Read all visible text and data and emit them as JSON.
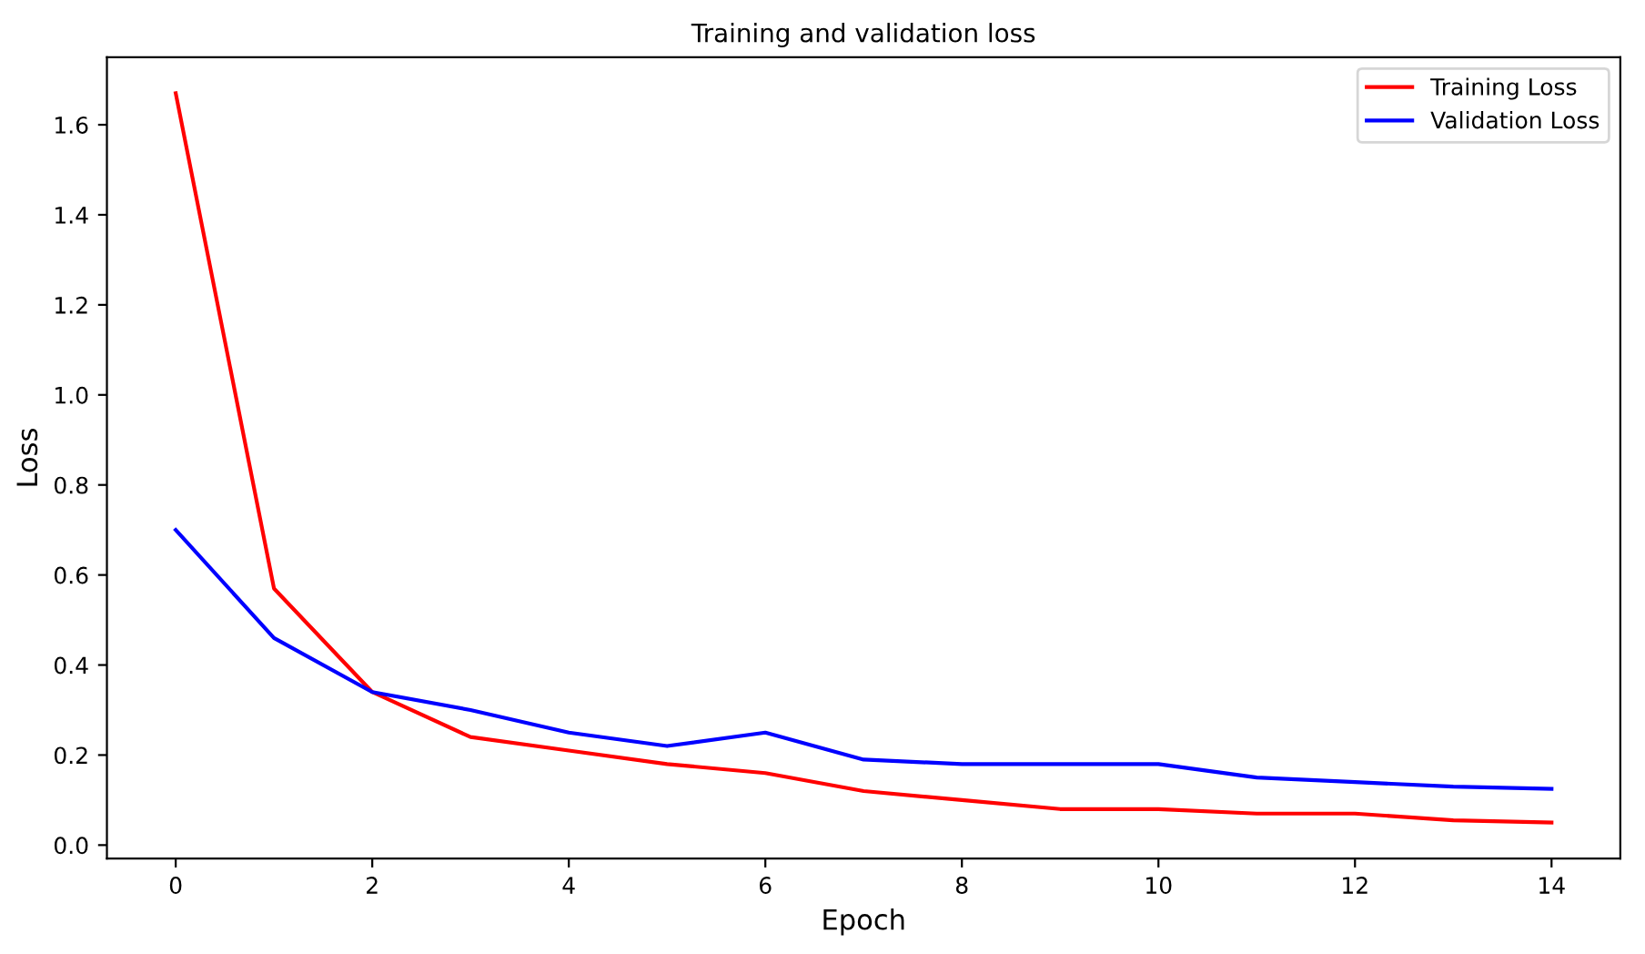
{
  "chart_data": {
    "type": "line",
    "title": "Training and validation loss",
    "xlabel": "Epoch",
    "ylabel": "Loss",
    "x": [
      0,
      1,
      2,
      3,
      4,
      5,
      6,
      7,
      8,
      9,
      10,
      11,
      12,
      13,
      14
    ],
    "series": [
      {
        "name": "Training Loss",
        "color": "#ff0000",
        "values": [
          1.67,
          0.57,
          0.34,
          0.24,
          0.21,
          0.18,
          0.16,
          0.12,
          0.1,
          0.08,
          0.08,
          0.07,
          0.07,
          0.055,
          0.05
        ]
      },
      {
        "name": "Validation Loss",
        "color": "#0000ff",
        "values": [
          0.7,
          0.46,
          0.34,
          0.3,
          0.25,
          0.22,
          0.25,
          0.19,
          0.18,
          0.18,
          0.18,
          0.15,
          0.14,
          0.13,
          0.125
        ]
      }
    ],
    "xlim": [
      -0.7,
      14.7
    ],
    "ylim": [
      -0.03,
      1.75
    ],
    "xticks": [
      0,
      2,
      4,
      6,
      8,
      10,
      12,
      14
    ],
    "yticks": [
      {
        "value": 0,
        "label": "0.0"
      },
      0.2,
      0.4,
      0.6,
      0.8,
      {
        "value": 1,
        "label": "1.0"
      },
      1.2,
      1.4,
      1.6
    ],
    "legend": "top right",
    "grid": false,
    "marker": "none",
    "line_style": "solid"
  }
}
